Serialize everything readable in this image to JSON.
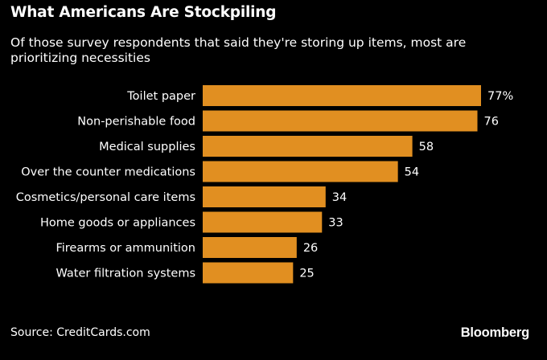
{
  "chart_data": {
    "type": "bar",
    "orientation": "horizontal",
    "title": "What Americans Are Stockpiling",
    "subtitle": "Of those survey respondents that said they're storing up items, most are prioritizing necessities",
    "categories": [
      "Toilet paper",
      "Non-perishable food",
      "Medical supplies",
      "Over the counter medications",
      "Cosmetics/personal care items",
      "Home goods or appliances",
      "Firearms or ammunition",
      "Water filtration systems"
    ],
    "values": [
      77,
      76,
      58,
      54,
      34,
      33,
      26,
      25
    ],
    "value_labels": [
      "77%",
      "76",
      "58",
      "54",
      "34",
      "33",
      "26",
      "25"
    ],
    "unit": "%",
    "xlim": [
      0,
      80
    ],
    "bar_color": "#e18f21",
    "grid": false,
    "xlabel": "",
    "ylabel": ""
  },
  "footer": {
    "source": "Source: CreditCards.com",
    "brand": "Bloomberg"
  }
}
